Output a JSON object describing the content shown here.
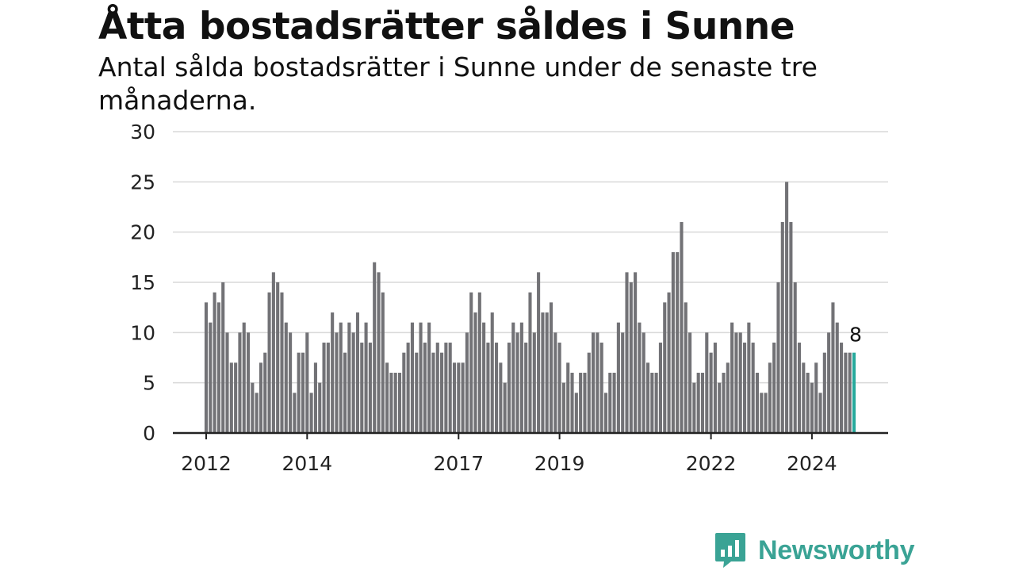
{
  "header": {
    "title": "Åtta bostadsrätter såldes i Sunne",
    "subtitle": "Antal sålda bostadsrätter i Sunne under de senaste tre månaderna."
  },
  "brand": {
    "name": "Newsworthy",
    "icon": "bar-chart-speech-bubble-icon",
    "color": "#3aa395"
  },
  "chart_data": {
    "type": "bar",
    "title": "Åtta bostadsrätter såldes i Sunne",
    "subtitle": "Antal sålda bostadsrätter i Sunne under de senaste tre månaderna.",
    "xlabel": "",
    "ylabel": "",
    "ylim": [
      0,
      30
    ],
    "yticks": [
      0,
      5,
      10,
      15,
      20,
      25,
      30
    ],
    "grid": true,
    "bar_color": "#727276",
    "highlight_color": "#27a99c",
    "highlight_last": true,
    "x_tick_labels": [
      {
        "label": "2012",
        "index": 0
      },
      {
        "label": "2014",
        "index": 24
      },
      {
        "label": "2017",
        "index": 60
      },
      {
        "label": "2019",
        "index": 84
      },
      {
        "label": "2022",
        "index": 120
      },
      {
        "label": "2024",
        "index": 144
      }
    ],
    "annotation": {
      "index": 154,
      "text": "8"
    },
    "values": [
      13,
      11,
      14,
      13,
      15,
      10,
      7,
      7,
      10,
      11,
      10,
      5,
      4,
      7,
      8,
      14,
      16,
      15,
      14,
      11,
      10,
      4,
      8,
      8,
      10,
      4,
      7,
      5,
      9,
      9,
      12,
      10,
      11,
      8,
      11,
      10,
      12,
      9,
      11,
      9,
      17,
      16,
      14,
      7,
      6,
      6,
      6,
      8,
      9,
      11,
      8,
      11,
      9,
      11,
      8,
      9,
      8,
      9,
      9,
      7,
      7,
      7,
      10,
      14,
      12,
      14,
      11,
      9,
      12,
      9,
      7,
      5,
      9,
      11,
      10,
      11,
      9,
      14,
      10,
      16,
      12,
      12,
      13,
      10,
      9,
      5,
      7,
      6,
      4,
      6,
      6,
      8,
      10,
      10,
      9,
      4,
      6,
      6,
      11,
      10,
      16,
      15,
      16,
      11,
      10,
      7,
      6,
      6,
      9,
      13,
      14,
      18,
      18,
      21,
      13,
      10,
      5,
      6,
      6,
      10,
      8,
      9,
      5,
      6,
      7,
      11,
      10,
      10,
      9,
      11,
      9,
      6,
      4,
      4,
      7,
      9,
      15,
      21,
      25,
      21,
      15,
      9,
      7,
      6,
      5,
      7,
      4,
      8,
      10,
      13,
      11,
      9,
      8,
      8,
      8
    ]
  }
}
